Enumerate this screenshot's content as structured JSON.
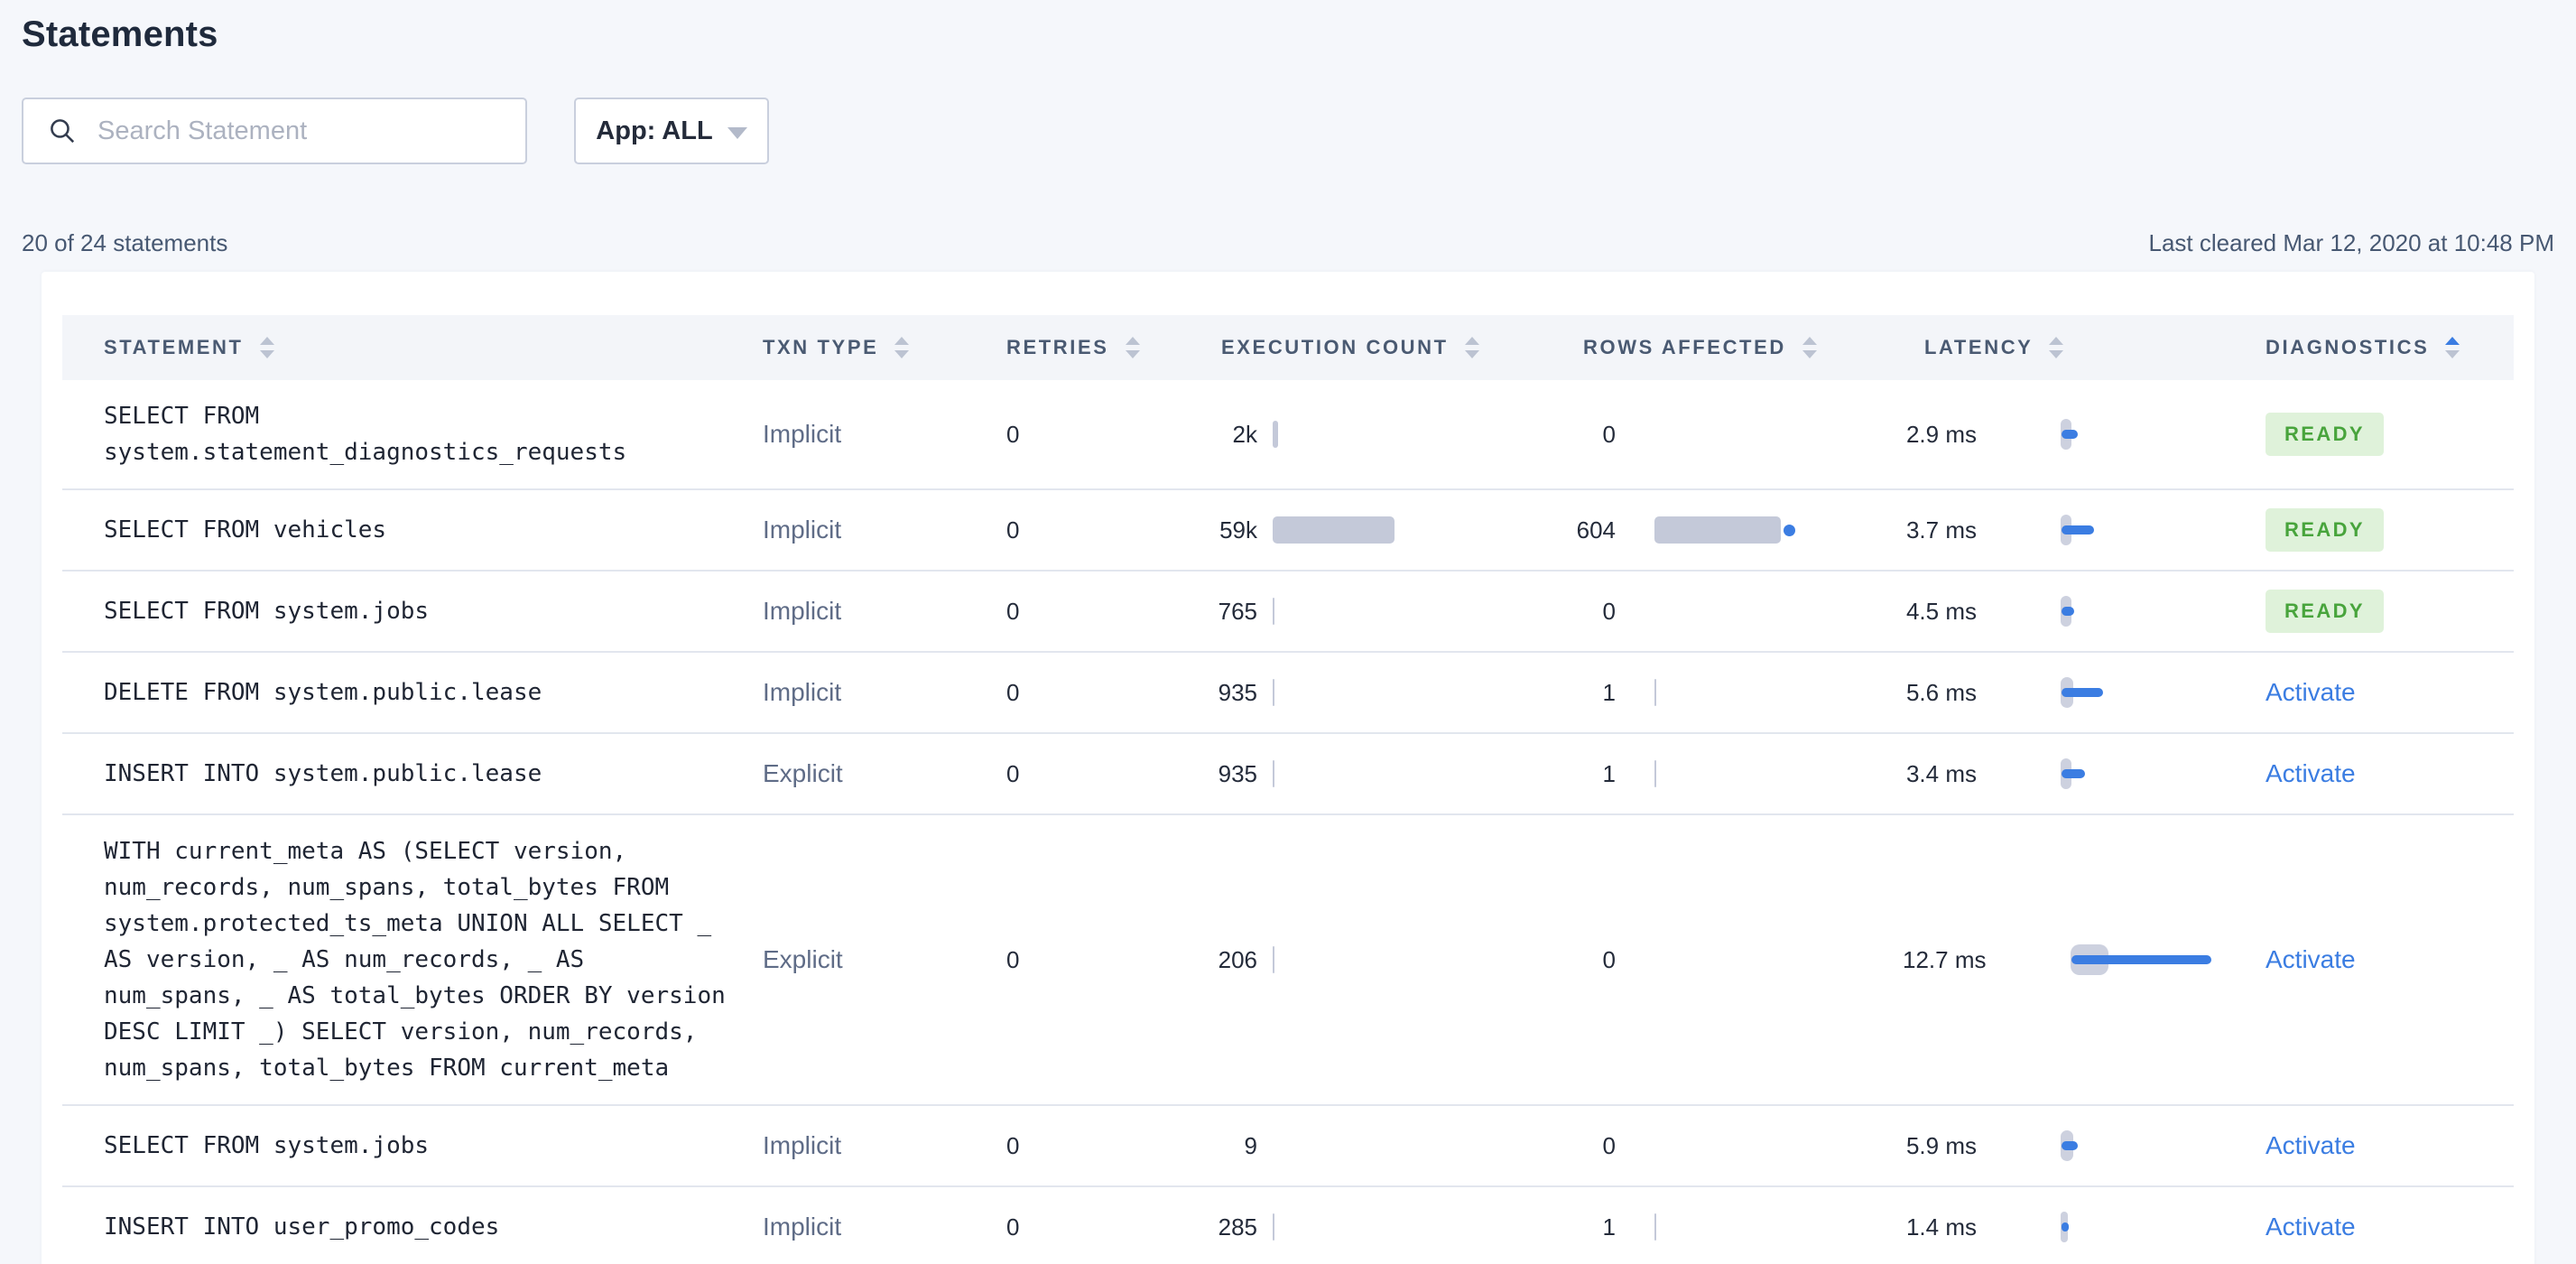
{
  "page": {
    "title": "Statements"
  },
  "toolbar": {
    "search_placeholder": "Search Statement",
    "app_filter_label": "App: ALL"
  },
  "summary": {
    "count_text": "20 of 24 statements",
    "last_cleared_text": "Last cleared Mar 12, 2020 at 10:48 PM"
  },
  "table": {
    "columns": [
      {
        "key": "statement",
        "label": "STATEMENT",
        "sort": "none"
      },
      {
        "key": "txn",
        "label": "TXN TYPE",
        "sort": "none"
      },
      {
        "key": "retries",
        "label": "RETRIES",
        "sort": "none"
      },
      {
        "key": "exec",
        "label": "EXECUTION COUNT",
        "sort": "none"
      },
      {
        "key": "rows",
        "label": "ROWS AFFECTED",
        "sort": "none"
      },
      {
        "key": "latency",
        "label": "LATENCY",
        "sort": "none"
      },
      {
        "key": "diag",
        "label": "DIAGNOSTICS",
        "sort": "asc"
      }
    ],
    "rows": [
      {
        "statement": "SELECT FROM system.statement_diagnostics_requests",
        "txn_type": "Implicit",
        "retries": "0",
        "execution_count": "2k",
        "execution_bar": 6,
        "rows_affected": "0",
        "rows_bar": 0,
        "rows_dot": false,
        "latency": "2.9 ms",
        "latency_cap": 12,
        "latency_bar": 18,
        "diagnostics": {
          "kind": "badge",
          "label": "READY"
        }
      },
      {
        "statement": "SELECT FROM vehicles",
        "txn_type": "Implicit",
        "retries": "0",
        "execution_count": "59k",
        "execution_bar": 135,
        "rows_affected": "604",
        "rows_bar": 140,
        "rows_dot": true,
        "latency": "3.7 ms",
        "latency_cap": 12,
        "latency_bar": 36,
        "diagnostics": {
          "kind": "badge",
          "label": "READY"
        }
      },
      {
        "statement": "SELECT FROM system.jobs",
        "txn_type": "Implicit",
        "retries": "0",
        "execution_count": "765",
        "execution_bar": 2,
        "rows_affected": "0",
        "rows_bar": 0,
        "rows_dot": false,
        "latency": "4.5 ms",
        "latency_cap": 12,
        "latency_bar": 14,
        "diagnostics": {
          "kind": "badge",
          "label": "READY"
        }
      },
      {
        "statement": "DELETE FROM system.public.lease",
        "txn_type": "Implicit",
        "retries": "0",
        "execution_count": "935",
        "execution_bar": 2,
        "rows_affected": "1",
        "rows_bar": 2,
        "rows_dot": false,
        "latency": "5.6 ms",
        "latency_cap": 14,
        "latency_bar": 46,
        "diagnostics": {
          "kind": "link",
          "label": "Activate"
        }
      },
      {
        "statement": "INSERT INTO system.public.lease",
        "txn_type": "Explicit",
        "retries": "0",
        "execution_count": "935",
        "execution_bar": 2,
        "rows_affected": "1",
        "rows_bar": 2,
        "rows_dot": false,
        "latency": "3.4 ms",
        "latency_cap": 12,
        "latency_bar": 26,
        "diagnostics": {
          "kind": "link",
          "label": "Activate"
        }
      },
      {
        "statement": "WITH current_meta AS (SELECT version, num_records, num_spans, total_bytes FROM system.protected_ts_meta UNION ALL SELECT _ AS version, _ AS num_records, _ AS num_spans, _ AS total_bytes ORDER BY version DESC LIMIT _) SELECT version, num_records, num_spans, total_bytes FROM current_meta",
        "txn_type": "Explicit",
        "retries": "0",
        "execution_count": "206",
        "execution_bar": 2,
        "rows_affected": "0",
        "rows_bar": 0,
        "rows_dot": false,
        "latency": "12.7 ms",
        "latency_cap": 42,
        "latency_bar": 155,
        "diagnostics": {
          "kind": "link",
          "label": "Activate"
        }
      },
      {
        "statement": "SELECT FROM system.jobs",
        "txn_type": "Implicit",
        "retries": "0",
        "execution_count": "9",
        "execution_bar": 0,
        "rows_affected": "0",
        "rows_bar": 0,
        "rows_dot": false,
        "latency": "5.9 ms",
        "latency_cap": 14,
        "latency_bar": 18,
        "diagnostics": {
          "kind": "link",
          "label": "Activate"
        }
      },
      {
        "statement": "INSERT INTO user_promo_codes",
        "txn_type": "Implicit",
        "retries": "0",
        "execution_count": "285",
        "execution_bar": 2,
        "rows_affected": "1",
        "rows_bar": 2,
        "rows_dot": false,
        "latency": "1.4 ms",
        "latency_cap": 8,
        "latency_bar": 8,
        "diagnostics": {
          "kind": "link",
          "label": "Activate"
        }
      }
    ]
  },
  "colors": {
    "accent_blue": "#3B7DE2",
    "bar_gray": "#C4C9D9",
    "ready_text_green": "#48A43C",
    "ready_bg_green": "#DFF2DA",
    "link_blue": "#3B7DE2",
    "page_bg": "#F5F7FB",
    "header_band_bg": "#F3F5F9"
  }
}
